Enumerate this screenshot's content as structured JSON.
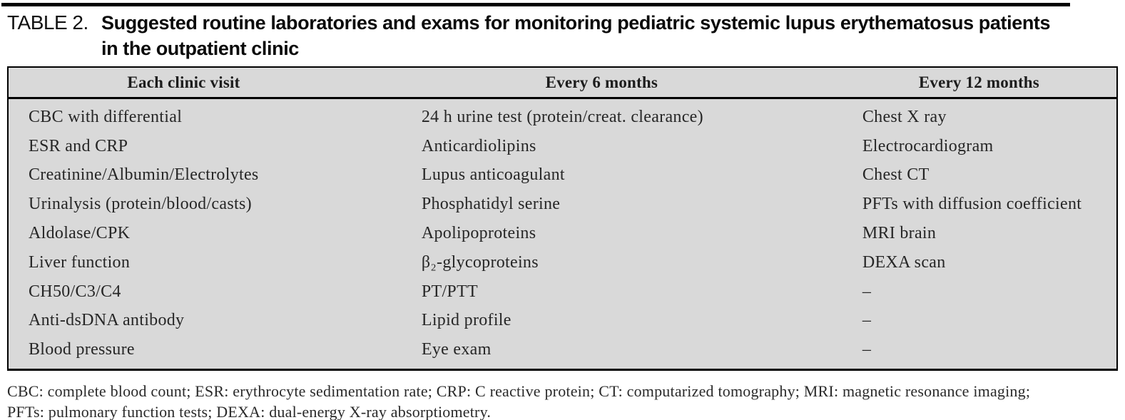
{
  "title": {
    "label": "TABLE 2.",
    "line1": "Suggested routine laboratories and exams for monitoring pediatric systemic lupus erythematosus patients",
    "line2": "in the outpatient clinic"
  },
  "table": {
    "columns": [
      "Each clinic visit",
      "Every 6 months",
      "Every 12 months"
    ],
    "rows": [
      [
        "CBC with differential",
        "24 h urine test (protein/creat. clearance)",
        "Chest X ray"
      ],
      [
        "ESR and CRP",
        "Anticardiolipins",
        "Electrocardiogram"
      ],
      [
        "Creatinine/Albumin/Electrolytes",
        "Lupus anticoagulant",
        "Chest CT"
      ],
      [
        "Urinalysis (protein/blood/casts)",
        "Phosphatidyl serine",
        "PFTs with diffusion coefficient"
      ],
      [
        "Aldolase/CPK",
        "Apolipoproteins",
        "MRI brain"
      ],
      [
        "Liver function",
        "β₂-glycoproteins",
        "DEXA scan"
      ],
      [
        "CH50/C3/C4",
        "PT/PTT",
        "–"
      ],
      [
        "Anti-dsDNA antibody",
        "Lipid profile",
        "–"
      ],
      [
        "Blood pressure",
        "Eye exam",
        "–"
      ]
    ]
  },
  "footnote": {
    "line1": "CBC: complete blood count; ESR: erythrocyte sedimentation rate; CRP: C reactive protein; CT: computarized tomography; MRI: magnetic resonance imaging;",
    "line2": "PFTs: pulmonary function tests; DEXA: dual-energy X-ray absorptiometry."
  },
  "colors": {
    "table_background": "#d9d9d9",
    "rule": "#000000",
    "text": "#1c1c1c"
  }
}
